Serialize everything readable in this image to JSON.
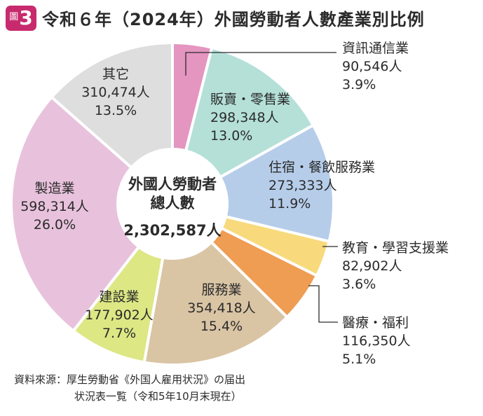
{
  "figure": {
    "badge_kanji": "圖",
    "badge_number": "3",
    "title": "令和６年（2024年）外國勞動者人數產業別比例"
  },
  "center": {
    "line1": "外國人勞動者",
    "line2": "總人數",
    "total": "2,302,587人"
  },
  "source": {
    "line1": "資料來源：厚生勞動省《外国人雇用状況》の届出",
    "line2": "状況表一覧（令和5年10月末現在）"
  },
  "chart_data": {
    "type": "pie",
    "donut": true,
    "title": "令和６年（2024年）外國勞動者人數產業別比例",
    "center_label": "外國人勞動者總人數",
    "total": 2302587,
    "unit": "人",
    "series": [
      {
        "name": "資訊通信業",
        "value": 90546,
        "value_label": "90,546人",
        "percent": 3.9,
        "percent_label": "3.9%",
        "color": "#e495c0"
      },
      {
        "name": "販賣・零售業",
        "value": 298348,
        "value_label": "298,348人",
        "percent": 13.0,
        "percent_label": "13.0%",
        "color": "#b4e0d8"
      },
      {
        "name": "住宿・餐飲服務業",
        "value": 273333,
        "value_label": "273,333人",
        "percent": 11.9,
        "percent_label": "11.9%",
        "color": "#b6cdea"
      },
      {
        "name": "教育・學習支援業",
        "value": 82902,
        "value_label": "82,902人",
        "percent": 3.6,
        "percent_label": "3.6%",
        "color": "#f8da7c"
      },
      {
        "name": "醫療・福利",
        "value": 116350,
        "value_label": "116,350人",
        "percent": 5.1,
        "percent_label": "5.1%",
        "color": "#ef9d52"
      },
      {
        "name": "服務業",
        "value": 354418,
        "value_label": "354,418人",
        "percent": 15.4,
        "percent_label": "15.4%",
        "color": "#d9c4a4"
      },
      {
        "name": "建設業",
        "value": 177902,
        "value_label": "177,902人",
        "percent": 7.7,
        "percent_label": "7.7%",
        "color": "#dde784"
      },
      {
        "name": "製造業",
        "value": 598314,
        "value_label": "598,314人",
        "percent": 26.0,
        "percent_label": "26.0%",
        "color": "#e8c2dc"
      },
      {
        "name": "其它",
        "value": 310474,
        "value_label": "310,474人",
        "percent": 13.5,
        "percent_label": "13.5%",
        "color": "#dedede"
      }
    ]
  }
}
